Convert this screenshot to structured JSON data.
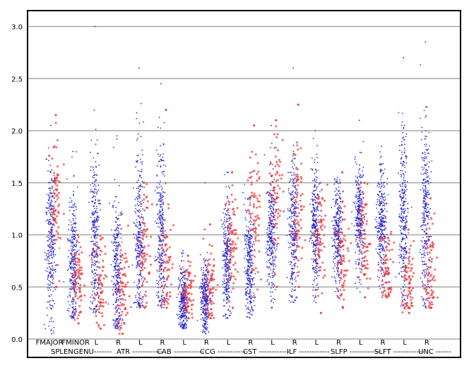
{
  "chart_data": {
    "type": "scatter",
    "title": "",
    "xlabel": "",
    "ylabel": "",
    "ylim": [
      0,
      3.05
    ],
    "yticks": [
      "0.0",
      "0.5",
      "1.0",
      "1.5",
      "2.0",
      "2.5",
      "3.0"
    ],
    "grid": "horizontal",
    "xtick_row1": [
      "FMAJOR",
      "FMINOR",
      "L",
      "R",
      "L",
      "R",
      "L",
      "R",
      "L",
      "R",
      "L",
      "R",
      "L",
      "R",
      "L",
      "R",
      "L",
      "R"
    ],
    "xtick_row2": [
      "SPLEN",
      "GENU-------",
      "ATR ------------",
      "CAB ------------",
      "CCG ------------",
      "CST ------------",
      "ILF ------------",
      "SLFP ------------",
      "SLFT ------------",
      "UNC ------"
    ],
    "colors": {
      "blue": "#1f1fd0",
      "red": "#ee3b3b",
      "grid": "#999999"
    },
    "series": [
      {
        "color": "blue",
        "groups": [
          {
            "center": 0.95,
            "spread": 0.38,
            "min": 0.05,
            "max": 2.05
          },
          {
            "center": 0.75,
            "spread": 0.35,
            "min": 0.2,
            "max": 1.8
          },
          {
            "center": 0.95,
            "spread": 0.45,
            "min": 0.25,
            "max": 3.0
          },
          {
            "center": 0.65,
            "spread": 0.38,
            "min": 0.1,
            "max": 1.95
          },
          {
            "center": 0.95,
            "spread": 0.45,
            "min": 0.3,
            "max": 2.6
          },
          {
            "center": 0.95,
            "spread": 0.45,
            "min": 0.3,
            "max": 2.45
          },
          {
            "center": 0.38,
            "spread": 0.18,
            "min": 0.1,
            "max": 0.85
          },
          {
            "center": 0.38,
            "spread": 0.18,
            "min": 0.05,
            "max": 1.5
          },
          {
            "center": 0.75,
            "spread": 0.3,
            "min": 0.2,
            "max": 1.6
          },
          {
            "center": 0.72,
            "spread": 0.28,
            "min": 0.2,
            "max": 1.55
          },
          {
            "center": 1.0,
            "spread": 0.3,
            "min": 0.3,
            "max": 2.05
          },
          {
            "center": 1.05,
            "spread": 0.35,
            "min": 0.35,
            "max": 2.6
          },
          {
            "center": 1.05,
            "spread": 0.3,
            "min": 0.35,
            "max": 2.0
          },
          {
            "center": 1.0,
            "spread": 0.25,
            "min": 0.4,
            "max": 1.55
          },
          {
            "center": 1.2,
            "spread": 0.28,
            "min": 0.45,
            "max": 2.1
          },
          {
            "center": 1.1,
            "spread": 0.28,
            "min": 0.4,
            "max": 1.85
          },
          {
            "center": 1.1,
            "spread": 0.45,
            "min": 0.3,
            "max": 2.7
          },
          {
            "center": 1.2,
            "spread": 0.45,
            "min": 0.3,
            "max": 2.85
          }
        ]
      },
      {
        "color": "red",
        "groups": [
          {
            "center": 1.3,
            "spread": 0.3,
            "min": 0.5,
            "max": 2.15
          },
          {
            "center": 0.55,
            "spread": 0.2,
            "min": 0.15,
            "max": 1.0
          },
          {
            "center": 0.6,
            "spread": 0.22,
            "min": 0.1,
            "max": 1.3
          },
          {
            "center": 0.5,
            "spread": 0.25,
            "min": 0.05,
            "max": 1.2
          },
          {
            "center": 0.85,
            "spread": 0.3,
            "min": 0.3,
            "max": 1.5
          },
          {
            "center": 0.65,
            "spread": 0.3,
            "min": 0.3,
            "max": 2.2
          },
          {
            "center": 0.45,
            "spread": 0.15,
            "min": 0.2,
            "max": 0.8
          },
          {
            "center": 0.5,
            "spread": 0.2,
            "min": 0.2,
            "max": 1.1
          },
          {
            "center": 0.9,
            "spread": 0.25,
            "min": 0.3,
            "max": 1.6
          },
          {
            "center": 1.2,
            "spread": 0.3,
            "min": 0.4,
            "max": 2.05
          },
          {
            "center": 1.3,
            "spread": 0.3,
            "min": 0.5,
            "max": 2.1
          },
          {
            "center": 1.3,
            "spread": 0.3,
            "min": 0.5,
            "max": 2.25
          },
          {
            "center": 1.0,
            "spread": 0.25,
            "min": 0.25,
            "max": 1.5
          },
          {
            "center": 0.85,
            "spread": 0.25,
            "min": 0.3,
            "max": 1.6
          },
          {
            "center": 0.95,
            "spread": 0.25,
            "min": 0.4,
            "max": 1.5
          },
          {
            "center": 0.7,
            "spread": 0.2,
            "min": 0.4,
            "max": 1.3
          },
          {
            "center": 0.55,
            "spread": 0.2,
            "min": 0.25,
            "max": 1.05
          },
          {
            "center": 0.6,
            "spread": 0.25,
            "min": 0.3,
            "max": 1.35
          }
        ]
      }
    ]
  }
}
